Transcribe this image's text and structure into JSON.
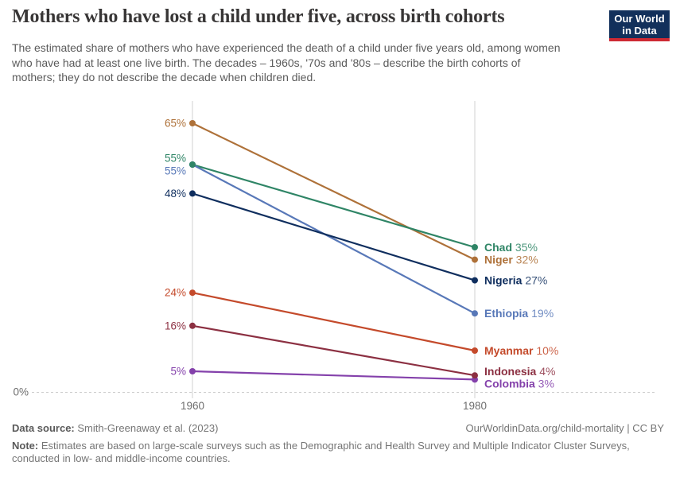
{
  "header": {
    "title": "Mothers who have lost a child under five, across birth cohorts",
    "subtitle_lines": [
      "The estimated share of mothers who have experienced the death of a child under five years old, among women",
      "who have had at least one live birth. The decades – 1960s, '70s and '80s – describe the birth cohorts of",
      "mothers; they do not describe the decade when children died."
    ],
    "logo": {
      "line1": "Our World",
      "line2": "in Data",
      "bg_color": "#12305b",
      "accent_color": "#ce2a33"
    }
  },
  "chart_data": {
    "type": "line",
    "title": "Mothers who have lost a child under five, across birth cohorts",
    "x": [
      1960,
      1980
    ],
    "x_tick_labels": [
      "1960",
      "1980"
    ],
    "unit": "%",
    "ylim": [
      0,
      70
    ],
    "baseline_label": "0%",
    "grid": "x-columns-only",
    "legend_position": "end-of-line-labels",
    "axis_text_color": "#6e6e6e",
    "grid_color": "#d0d0d0",
    "series": [
      {
        "name": "Niger",
        "values": [
          65,
          32
        ],
        "color": "#ae7139"
      },
      {
        "name": "Chad",
        "values": [
          55,
          35
        ],
        "color": "#2f8566"
      },
      {
        "name": "Ethiopia",
        "values": [
          55,
          19
        ],
        "color": "#5878b8"
      },
      {
        "name": "Nigeria",
        "values": [
          48,
          27
        ],
        "color": "#0f2e5e"
      },
      {
        "name": "Myanmar",
        "values": [
          24,
          10
        ],
        "color": "#c44a2b"
      },
      {
        "name": "Indonesia",
        "values": [
          16,
          4
        ],
        "color": "#8c3042"
      },
      {
        "name": "Colombia",
        "values": [
          5,
          3
        ],
        "color": "#8441ab"
      }
    ]
  },
  "footer": {
    "source_label": "Data source:",
    "source_text": "Smith-Greenaway et al. (2023)",
    "attribution": "OurWorldinData.org/child-mortality | CC BY",
    "note_label": "Note:",
    "note_line1": "Estimates are based on large-scale surveys such as the Demographic and Health Survey and Multiple Indicator Cluster Surveys,",
    "note_line2": "conducted in low- and middle-income countries."
  }
}
